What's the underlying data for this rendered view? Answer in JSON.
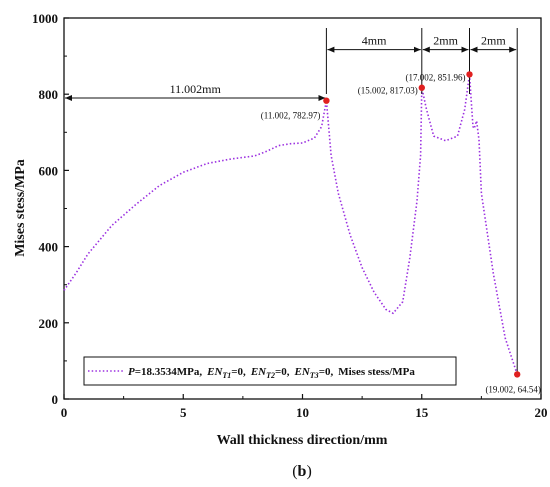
{
  "chart_data": {
    "type": "line",
    "xlabel": "Wall thickness direction/mm",
    "ylabel": "Mises stess/MPa",
    "xlim": [
      0,
      20
    ],
    "ylim": [
      0,
      1000
    ],
    "xticks": [
      "0",
      "5",
      "10",
      "15",
      "20"
    ],
    "yticks": [
      "0",
      "200",
      "400",
      "600",
      "800",
      "1000"
    ],
    "grid": false,
    "legend_position": "bottom-left",
    "series": [
      {
        "name": "P=18.3534MPa, EN_T1=0, EN_T2=0, EN_T3=0, Mises stess/MPa",
        "color": "#9b30e0",
        "style": "dotted",
        "x": [
          0,
          0.5,
          1,
          2,
          3,
          4,
          5,
          6,
          7,
          8,
          8.5,
          9,
          9.5,
          10,
          10.5,
          10.8,
          11.002,
          11.2,
          11.5,
          12,
          12.5,
          13,
          13.5,
          13.8,
          14.2,
          14.5,
          14.8,
          14.95,
          15.002,
          15.2,
          15.5,
          16,
          16.5,
          16.8,
          17.002,
          17.1,
          17.15,
          17.2,
          17.3,
          17.4,
          17.5,
          18,
          18.5,
          19.002
        ],
        "y": [
          285,
          330,
          380,
          455,
          510,
          560,
          595,
          618,
          630,
          638,
          650,
          665,
          670,
          672,
          685,
          715,
          782.97,
          640,
          540,
          430,
          345,
          280,
          235,
          225,
          255,
          370,
          520,
          640,
          817.03,
          760,
          690,
          678,
          690,
          760,
          851.96,
          760,
          715,
          710,
          730,
          680,
          540,
          330,
          160,
          64.54
        ]
      }
    ],
    "markers": [
      {
        "x": 11.002,
        "y": 782.97,
        "label": "(11.002, 782.97)"
      },
      {
        "x": 15.002,
        "y": 817.03,
        "label": "(15.002, 817.03)"
      },
      {
        "x": 17.002,
        "y": 851.96,
        "label": "(17.002, 851.96)"
      },
      {
        "x": 19.002,
        "y": 64.54,
        "label": "(19.002, 64.54)"
      }
    ],
    "dimensions": [
      {
        "from": 0,
        "to": 11.002,
        "y": 790,
        "label": "11.002mm"
      },
      {
        "from": 11.002,
        "to": 15.002,
        "y": 917,
        "label": "4mm"
      },
      {
        "from": 15.002,
        "to": 17.002,
        "y": 917,
        "label": "2mm"
      },
      {
        "from": 17.002,
        "to": 19.002,
        "y": 917,
        "label": "2mm"
      }
    ]
  },
  "legend": {
    "p_label": "P",
    "p_value": "=18.3534MPa,",
    "en_label": "EN",
    "t1": "T1",
    "t2": "T2",
    "t3": "T3",
    "zero": "=0,",
    "tail": "Mises stess/MPa"
  },
  "caption": {
    "open": "(",
    "letter": "b",
    "close": ")"
  }
}
